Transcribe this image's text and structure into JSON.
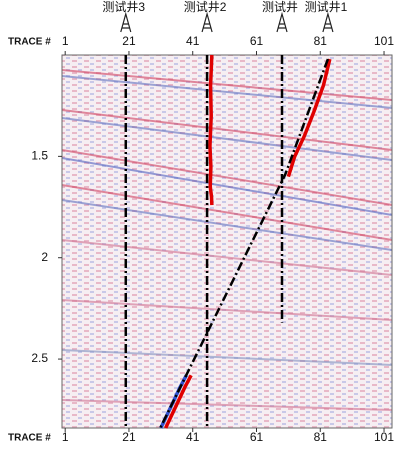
{
  "chart_data": {
    "type": "seismic",
    "x_label": "TRACE #",
    "xlim": [
      0,
      103.5
    ],
    "xticks": [
      1,
      21,
      41,
      61,
      81,
      101
    ],
    "ylim": [
      1,
      2.84
    ],
    "yticks": [
      1.5,
      2,
      2.5
    ],
    "wells": [
      {
        "name": "测试井3",
        "x": [
          20,
          20
        ],
        "y": [
          1,
          2.84
        ]
      },
      {
        "name": "测试井2",
        "x": [
          45.5,
          45.5
        ],
        "y": [
          1,
          2.84
        ]
      },
      {
        "name": "测试井",
        "x": [
          69,
          69
        ],
        "y": [
          1,
          2.32
        ]
      },
      {
        "name": "测试井1",
        "x": [
          83.4,
          70,
          30.8
        ],
        "y": [
          1.02,
          1.59,
          2.84
        ]
      }
    ],
    "logs": [
      {
        "color": "#e00000",
        "x": [
          47,
          46.6,
          46.8,
          46.4,
          46.7,
          46.5,
          46.9,
          47
        ],
        "y": [
          1,
          1.15,
          1.3,
          1.45,
          1.55,
          1.65,
          1.7,
          1.74
        ]
      },
      {
        "color": "#e00000",
        "x": [
          84,
          82,
          79,
          76,
          73,
          71
        ],
        "y": [
          1.02,
          1.15,
          1.28,
          1.4,
          1.5,
          1.6
        ]
      },
      {
        "color": "#3050d0",
        "x": [
          31,
          34,
          37,
          39
        ],
        "y": [
          2.84,
          2.74,
          2.64,
          2.58
        ]
      },
      {
        "color": "#e00000",
        "x": [
          32.5,
          35.5,
          38.5,
          40.5
        ],
        "y": [
          2.84,
          2.74,
          2.64,
          2.58
        ]
      }
    ]
  }
}
